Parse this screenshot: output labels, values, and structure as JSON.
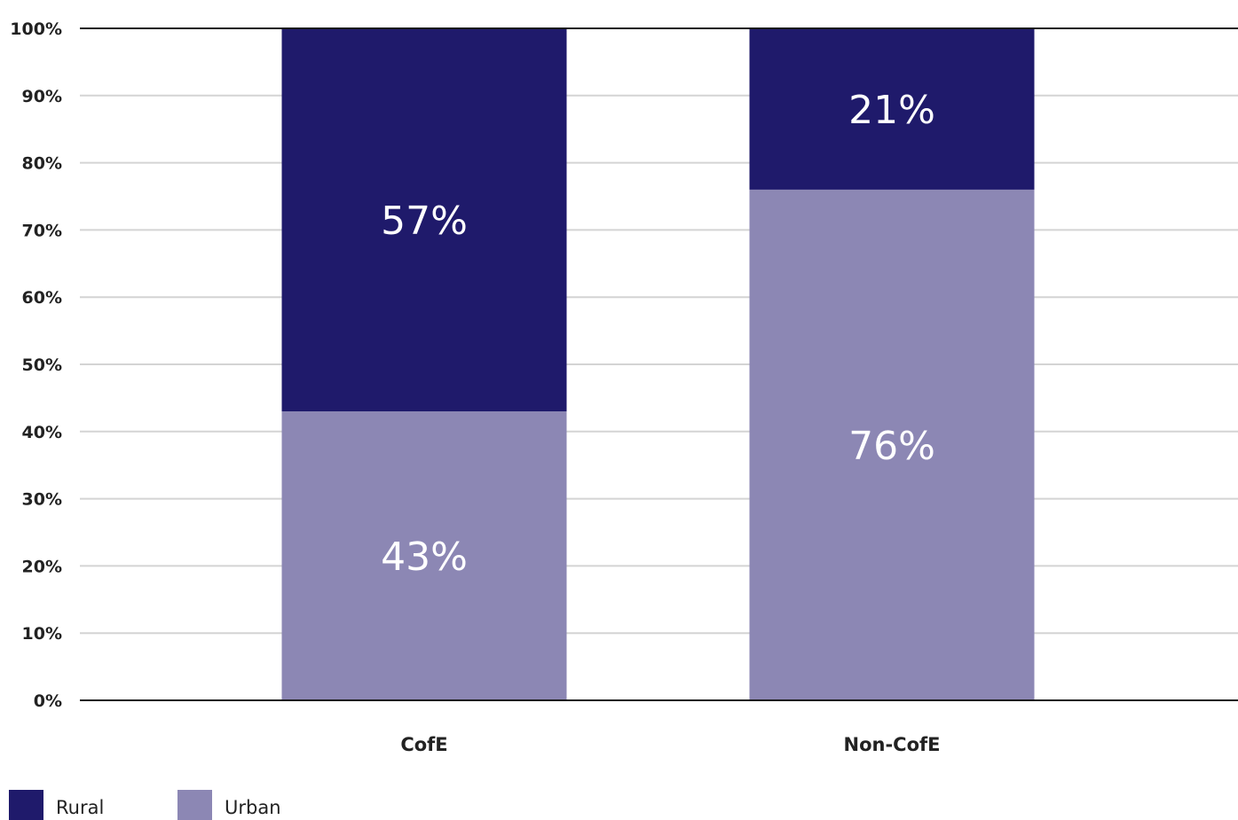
{
  "chart_data": {
    "type": "bar",
    "stacked": true,
    "categories": [
      "CofE",
      "Non-CofE"
    ],
    "series": [
      {
        "name": "Rural",
        "values": [
          57,
          21
        ],
        "labels": [
          "57%",
          "21%"
        ],
        "color": "#1f1a6b"
      },
      {
        "name": "Urban",
        "values": [
          43,
          76
        ],
        "labels": [
          "43%",
          "76%"
        ],
        "color": "#8c87b4"
      }
    ],
    "stack_order": [
      "Urban",
      "Rural"
    ],
    "ylim": [
      0,
      100
    ],
    "yticks": [
      0,
      10,
      20,
      30,
      40,
      50,
      60,
      70,
      80,
      90,
      100
    ],
    "ytick_labels": [
      "0%",
      "10%",
      "20%",
      "30%",
      "40%",
      "50%",
      "60%",
      "70%",
      "80%",
      "90%",
      "100%"
    ],
    "title": "",
    "xlabel": "",
    "ylabel": "",
    "grid": true,
    "legend_position": "bottom-left"
  }
}
